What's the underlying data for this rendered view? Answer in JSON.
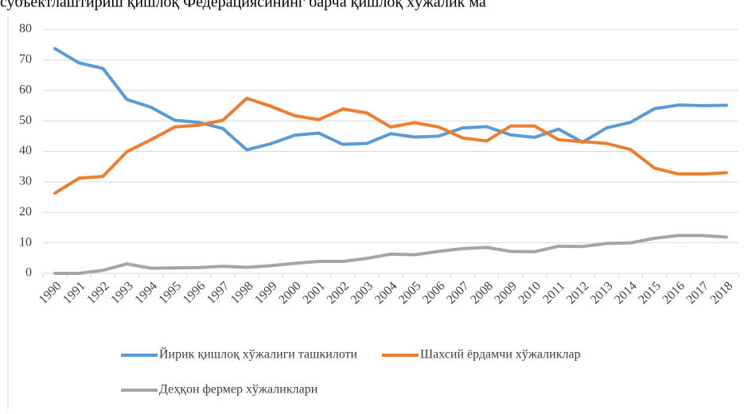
{
  "chart_data": {
    "type": "line",
    "title": "субъектлаштириш қишлоқ Федерациясининг барча қишлоқ хўжалик ма",
    "categories": [
      "1990",
      "1991",
      "1992",
      "1993",
      "1994",
      "1995",
      "1996",
      "1997",
      "1998",
      "1999",
      "2000",
      "2001",
      "2002",
      "2003",
      "2004",
      "2005",
      "2006",
      "2007",
      "2008",
      "2009",
      "2010",
      "2011",
      "2012",
      "2013",
      "2014",
      "2015",
      "2016",
      "2017",
      "2018"
    ],
    "series": [
      {
        "name": "Йирик қишлоқ хўжалиги ташкилоти",
        "color": "#5b9bd5",
        "values": [
          73.7,
          69,
          67.2,
          57,
          54.5,
          50.2,
          49.5,
          47.5,
          40.5,
          42.5,
          45.3,
          46,
          42.3,
          42.6,
          45.8,
          44.7,
          45,
          47.7,
          48.1,
          45.4,
          44.6,
          47.3,
          43,
          47.7,
          49.5,
          54,
          55.2,
          55,
          55.1
        ]
      },
      {
        "name": "Шахсий ёрдамчи хўжаликлар",
        "color": "#ed7d31",
        "values": [
          26.3,
          31.2,
          31.8,
          39.9,
          43.8,
          48,
          48.6,
          50.2,
          57.4,
          54.8,
          51.7,
          50.4,
          53.9,
          52.6,
          48,
          49.4,
          48,
          44.4,
          43.4,
          48.3,
          48.3,
          43.8,
          43.2,
          42.6,
          40.6,
          34.5,
          32.6,
          32.6,
          33
        ]
      },
      {
        "name": "Деҳқон фермер хўжаликлари",
        "color": "#a5a5a5",
        "values": [
          0,
          0,
          1,
          3.1,
          1.7,
          1.8,
          1.9,
          2.3,
          2,
          2.5,
          3.3,
          3.9,
          3.9,
          4.9,
          6.3,
          6.1,
          7.2,
          8.1,
          8.5,
          7.2,
          7.1,
          8.9,
          8.8,
          9.8,
          10,
          11.5,
          12.4,
          12.4,
          11.9
        ]
      }
    ],
    "ylim": [
      0,
      80
    ],
    "yticks": [
      0,
      10,
      20,
      30,
      40,
      50,
      60,
      70,
      80
    ],
    "grid": true
  }
}
